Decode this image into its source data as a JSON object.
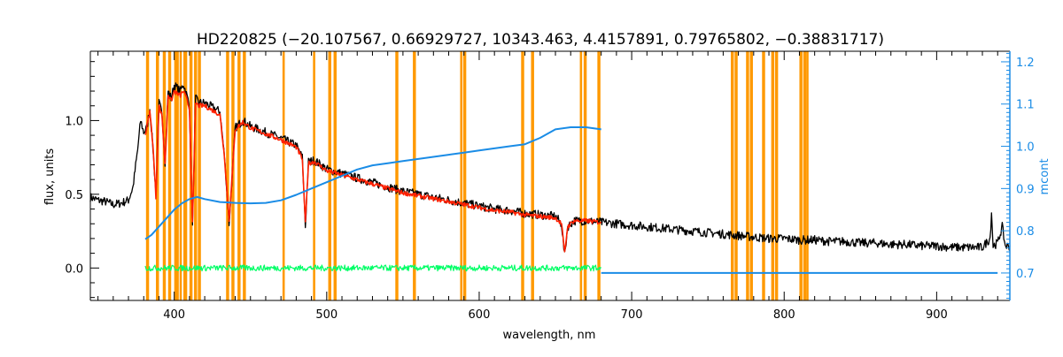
{
  "chart_data": {
    "type": "line",
    "title": "HD220825    (−20.107567, 0.66929727, 10343.463, 4.4157891, 0.79765802, −0.38831717)",
    "xlabel": "wavelength, nm",
    "ylabel": "flux, units",
    "y2label": "mcont",
    "xlim": [
      345,
      948
    ],
    "ylim": [
      -0.22,
      1.47
    ],
    "y2lim": [
      0.635,
      1.225
    ],
    "x_ticks": [
      400,
      500,
      600,
      700,
      800,
      900
    ],
    "y_ticks": [
      0.0,
      0.5,
      1.0
    ],
    "y2_ticks": [
      0.7,
      0.8,
      0.9,
      1.0,
      1.1,
      1.2
    ],
    "x_tick_labels": [
      "400",
      "500",
      "600",
      "700",
      "800",
      "900"
    ],
    "y_tick_labels": [
      "0.0",
      "0.5",
      "1.0"
    ],
    "y2_tick_labels": [
      "0.7",
      "0.8",
      "0.9",
      "1.0",
      "1.1",
      "1.2"
    ],
    "grid": false,
    "legend": "none",
    "colors": {
      "observed": "#000000",
      "model": "#ff2000",
      "residual": "#00ff66",
      "continuum": "#1a8ce6",
      "mask": "#ff9900",
      "axes": "#000000",
      "axis_right": "#1a8ce6"
    },
    "masked_regions": [
      [
        381.5,
        383.5
      ],
      [
        388,
        390
      ],
      [
        392.5,
        394.5
      ],
      [
        396,
        398
      ],
      [
        400,
        403
      ],
      [
        403.5,
        405
      ],
      [
        406,
        408.5
      ],
      [
        410,
        412
      ],
      [
        413,
        415
      ],
      [
        415.5,
        417.5
      ],
      [
        434,
        436
      ],
      [
        437.5,
        439.5
      ],
      [
        441.5,
        443.5
      ],
      [
        445,
        447
      ],
      [
        471,
        472.5
      ],
      [
        491,
        492.5
      ],
      [
        501,
        503
      ],
      [
        504.5,
        506.5
      ],
      [
        545,
        547
      ],
      [
        556.5,
        558.5
      ],
      [
        587.5,
        589
      ],
      [
        589.5,
        591.5
      ],
      [
        627.5,
        629.5
      ],
      [
        634,
        636
      ],
      [
        666,
        667.5
      ],
      [
        668.5,
        670.5
      ],
      [
        677.5,
        679.5
      ],
      [
        765,
        767
      ],
      [
        767.5,
        769.5
      ],
      [
        775,
        777
      ],
      [
        777.5,
        779.5
      ],
      [
        785.5,
        787.5
      ],
      [
        791.5,
        793.5
      ],
      [
        794,
        796
      ],
      [
        810,
        812
      ],
      [
        812.5,
        814.5
      ],
      [
        814.5,
        816
      ]
    ],
    "series": [
      {
        "key": "observed",
        "x": [
          345,
          350,
          355,
          360,
          365,
          370,
          373,
          376,
          378,
          380,
          382,
          384,
          386,
          388,
          390,
          392,
          394,
          396,
          398,
          400,
          402,
          404,
          406,
          408,
          410,
          412,
          414,
          416,
          420,
          425,
          430,
          433,
          436,
          440,
          445,
          450,
          455,
          460,
          470,
          480,
          484,
          486,
          488,
          492,
          500,
          510,
          520,
          530,
          540,
          550,
          560,
          570,
          580,
          590,
          600,
          610,
          620,
          630,
          640,
          650,
          654,
          656,
          658,
          662,
          670,
          680,
          690,
          700,
          710,
          720,
          730,
          740,
          750,
          760,
          770,
          780,
          790,
          800,
          810,
          820,
          830,
          840,
          850,
          860,
          870,
          880,
          890,
          900,
          910,
          920,
          930,
          935,
          936,
          937,
          940,
          943,
          945,
          948
        ],
        "y": [
          0.48,
          0.46,
          0.45,
          0.43,
          0.44,
          0.46,
          0.55,
          0.8,
          1.0,
          0.92,
          0.95,
          1.08,
          0.82,
          0.5,
          1.12,
          1.05,
          0.72,
          1.2,
          1.15,
          1.24,
          1.22,
          1.2,
          1.25,
          1.18,
          1.1,
          0.28,
          1.15,
          1.12,
          1.12,
          1.09,
          1.06,
          0.75,
          0.3,
          0.95,
          1.0,
          0.96,
          0.94,
          0.92,
          0.88,
          0.83,
          0.75,
          0.28,
          0.72,
          0.73,
          0.67,
          0.64,
          0.61,
          0.58,
          0.55,
          0.52,
          0.5,
          0.48,
          0.46,
          0.44,
          0.42,
          0.4,
          0.39,
          0.37,
          0.36,
          0.35,
          0.3,
          0.08,
          0.28,
          0.32,
          0.32,
          0.31,
          0.3,
          0.29,
          0.28,
          0.27,
          0.26,
          0.25,
          0.24,
          0.23,
          0.22,
          0.21,
          0.2,
          0.2,
          0.19,
          0.19,
          0.18,
          0.18,
          0.17,
          0.17,
          0.16,
          0.16,
          0.15,
          0.15,
          0.14,
          0.14,
          0.14,
          0.2,
          0.38,
          0.15,
          0.17,
          0.28,
          0.15,
          0.15
        ],
        "noise": 0.03
      },
      {
        "key": "model",
        "x": [
          381,
          384,
          386,
          388,
          390,
          392,
          394,
          396,
          398,
          400,
          402,
          404,
          406,
          408,
          410,
          412,
          414,
          416,
          420,
          425,
          430,
          433,
          436,
          440,
          445,
          450,
          455,
          460,
          470,
          480,
          484,
          486,
          488,
          492,
          500,
          510,
          520,
          530,
          540,
          550,
          560,
          570,
          580,
          590,
          600,
          610,
          620,
          630,
          640,
          650,
          654,
          656,
          658,
          662,
          670,
          680
        ],
        "y": [
          0.9,
          1.06,
          0.84,
          0.48,
          1.1,
          1.03,
          0.7,
          1.18,
          1.13,
          1.2,
          1.18,
          1.17,
          1.2,
          1.15,
          1.08,
          0.3,
          1.12,
          1.1,
          1.1,
          1.07,
          1.04,
          0.75,
          0.32,
          0.94,
          0.99,
          0.95,
          0.93,
          0.91,
          0.87,
          0.82,
          0.74,
          0.3,
          0.71,
          0.72,
          0.66,
          0.63,
          0.6,
          0.57,
          0.54,
          0.51,
          0.49,
          0.47,
          0.45,
          0.43,
          0.41,
          0.39,
          0.38,
          0.36,
          0.35,
          0.34,
          0.3,
          0.1,
          0.28,
          0.32,
          0.32,
          0.31
        ],
        "noise": 0.015
      },
      {
        "key": "residual",
        "x": [
          381,
          400,
          420,
          450,
          500,
          550,
          600,
          650,
          680
        ],
        "y": [
          0.0,
          0.0,
          0.0,
          0.0,
          0.0,
          0.0,
          0.0,
          0.0,
          0.0
        ],
        "noise": 0.02
      },
      {
        "key": "continuum",
        "axis": "right",
        "x": [
          381,
          385,
          390,
          395,
          400,
          405,
          410,
          415,
          420,
          430,
          440,
          450,
          460,
          470,
          480,
          490,
          500,
          510,
          520,
          530,
          540,
          550,
          560,
          570,
          580,
          590,
          600,
          610,
          620,
          630,
          640,
          650,
          660,
          670,
          680
        ],
        "y": [
          0.78,
          0.79,
          0.81,
          0.83,
          0.85,
          0.865,
          0.875,
          0.88,
          0.875,
          0.868,
          0.866,
          0.865,
          0.866,
          0.872,
          0.885,
          0.9,
          0.915,
          0.93,
          0.945,
          0.955,
          0.96,
          0.965,
          0.97,
          0.975,
          0.98,
          0.985,
          0.99,
          0.995,
          1.0,
          1.005,
          1.02,
          1.04,
          1.045,
          1.045,
          1.04
        ]
      },
      {
        "key": "continuum_ext",
        "axis": "right",
        "x": [
          680,
          940
        ],
        "y": [
          0.7,
          0.7
        ]
      }
    ]
  }
}
